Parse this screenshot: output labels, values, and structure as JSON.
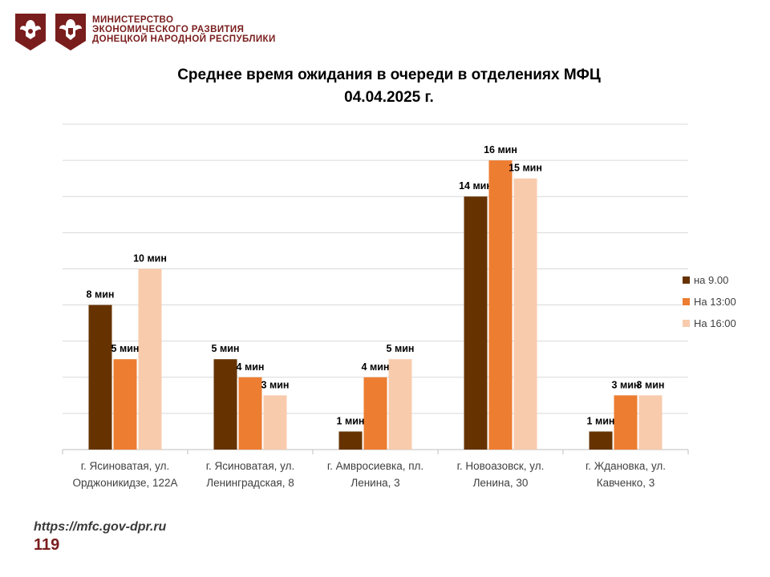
{
  "header": {
    "org_lines": [
      "МИНИСТЕРСТВО",
      "ЭКОНОМИЧЕСКОГО РАЗВИТИЯ",
      "ДОНЕЦКОЙ НАРОДНОЙ РЕСПУБЛИКИ"
    ],
    "emblems": [
      "coat-of-arms-russia-icon",
      "coat-of-arms-dpr-icon"
    ]
  },
  "footer": {
    "url": "https://mfc.gov-dpr.ru",
    "page_number": "119"
  },
  "colors": {
    "brand": "#7a1d1d",
    "series": [
      "#663300",
      "#ed7d31",
      "#f8cbad"
    ],
    "grid": "#d9d9d9"
  },
  "chart_data": {
    "type": "bar",
    "title_line1": "Среднее время ожидания в очереди в отделениях МФЦ",
    "title_line2": "04.04.2025   г.",
    "xlabel": "",
    "ylabel": "",
    "ylim": [
      0,
      18
    ],
    "grid": true,
    "legend_position": "right",
    "value_suffix": " мин",
    "categories": [
      [
        "г. Ясиноватая, ул.",
        "Орджоникидзе, 122А"
      ],
      [
        "г. Ясиноватая, ул.",
        "Ленинградская, 8"
      ],
      [
        "г. Амвросиевка, пл.",
        "Ленина, 3"
      ],
      [
        "г. Новоазовск, ул.",
        "Ленина, 30"
      ],
      [
        "г. Ждановка, ул.",
        "Кавченко, 3"
      ]
    ],
    "series": [
      {
        "name": "на 9.00",
        "values": [
          8,
          5,
          1,
          14,
          1
        ]
      },
      {
        "name": "На 13:00",
        "values": [
          5,
          4,
          4,
          16,
          3
        ]
      },
      {
        "name": "На 16:00",
        "values": [
          10,
          3,
          5,
          15,
          3
        ]
      }
    ]
  }
}
